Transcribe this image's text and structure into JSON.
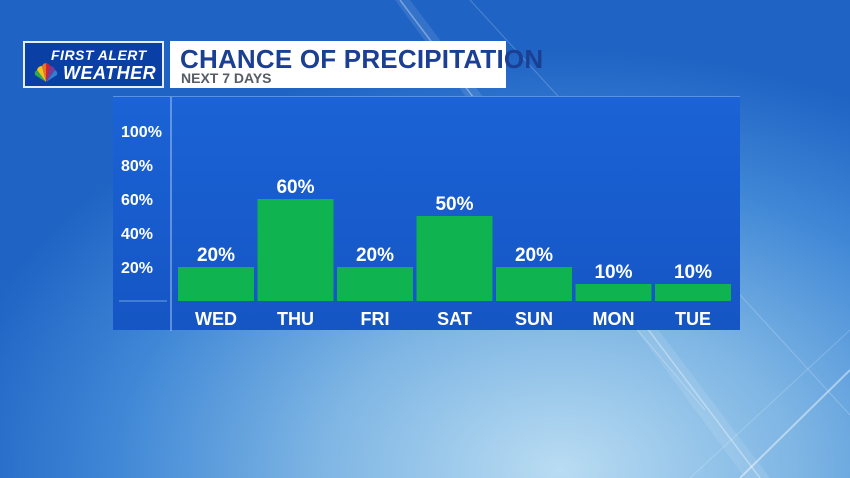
{
  "header": {
    "logo_line1": "FIRST ALERT",
    "logo_line2": "WEATHER",
    "logo_icon": "peacock-icon",
    "title": "CHANCE OF PRECIPITATION",
    "subtitle": "NEXT 7 DAYS"
  },
  "colors": {
    "bar": "#0fb350",
    "panel": "#1a5fd2",
    "logo_bg": "#0a3fa6",
    "title_text": "#1b3f92",
    "subtitle_text": "#555c66"
  },
  "chart_data": {
    "type": "bar",
    "categories": [
      "WED",
      "THU",
      "FRI",
      "SAT",
      "SUN",
      "MON",
      "TUE"
    ],
    "values": [
      20,
      60,
      20,
      50,
      20,
      10,
      10
    ],
    "data_labels": [
      "20%",
      "60%",
      "20%",
      "50%",
      "20%",
      "10%",
      "10%"
    ],
    "yticks": [
      20,
      40,
      60,
      80,
      100
    ],
    "ytick_labels": [
      "20%",
      "40%",
      "60%",
      "80%",
      "100%"
    ],
    "ylim": [
      0,
      100
    ],
    "title": "CHANCE OF PRECIPITATION",
    "subtitle": "NEXT 7 DAYS",
    "xlabel": "",
    "ylabel": "",
    "grid": false,
    "legend": "none"
  }
}
